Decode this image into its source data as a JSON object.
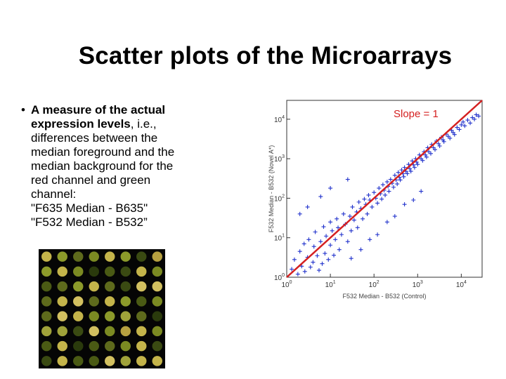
{
  "slide": {
    "title": "Scatter plots of the Microarrays",
    "bullet": {
      "marker": "•",
      "bold_lead": "A measure of the actual expression levels",
      "rest": ", i.e., differences between the median foreground and the median background for the red channel and green channel:",
      "line1": "\"F635 Median - B635\"",
      "line2": "\"F532 Median - B532”"
    }
  },
  "microarray_image": {
    "rows": 8,
    "cols": 8,
    "spot_colors": [
      "#3a4a12",
      "#5e6a1c",
      "#7b8a22",
      "#a0a23a",
      "#c4b44a",
      "#8c9a2a",
      "#4a5a14",
      "#2a3a0c",
      "#b6a040",
      "#d2c060"
    ]
  },
  "chart_data": {
    "type": "scatter",
    "title": "",
    "xlabel": "F532 Median - B532 (Control)",
    "ylabel": "F532 Median - B532 (Novel A*)",
    "xscale": "log",
    "yscale": "log",
    "xlim": [
      1,
      30000
    ],
    "ylim": [
      1,
      30000
    ],
    "x_ticks": [
      "10^0",
      "10^1",
      "10^2",
      "10^3",
      "10^4"
    ],
    "y_ticks": [
      "10^0",
      "10^1",
      "10^2",
      "10^3",
      "10^4"
    ],
    "marker": "+",
    "point_color": "#2233cc",
    "reference_line": {
      "label": "Slope = 1",
      "slope": 1,
      "color": "#d42020",
      "from": [
        1,
        1
      ],
      "to": [
        30000,
        30000
      ]
    },
    "annotation_color": "#d42020",
    "series": [
      {
        "points": [
          [
            1.3,
            1.6
          ],
          [
            1.5,
            2.8
          ],
          [
            1.8,
            1.2
          ],
          [
            2,
            4.5
          ],
          [
            2.2,
            1.9
          ],
          [
            2.5,
            7
          ],
          [
            2.6,
            1.4
          ],
          [
            3,
            3.2
          ],
          [
            3.2,
            9
          ],
          [
            3.5,
            1.8
          ],
          [
            4,
            2.4
          ],
          [
            4.2,
            6
          ],
          [
            4.5,
            14
          ],
          [
            5,
            3.5
          ],
          [
            5.5,
            1.5
          ],
          [
            6,
            8
          ],
          [
            6.5,
            2.2
          ],
          [
            7,
            19
          ],
          [
            7.5,
            4
          ],
          [
            8,
            11
          ],
          [
            9,
            2.8
          ],
          [
            10,
            6.5
          ],
          [
            10,
            25
          ],
          [
            11,
            15
          ],
          [
            12,
            3.6
          ],
          [
            13,
            9
          ],
          [
            14,
            30
          ],
          [
            15,
            18
          ],
          [
            16,
            5
          ],
          [
            18,
            12
          ],
          [
            20,
            40
          ],
          [
            22,
            22
          ],
          [
            25,
            8
          ],
          [
            28,
            35
          ],
          [
            30,
            15
          ],
          [
            32,
            60
          ],
          [
            35,
            28
          ],
          [
            40,
            45
          ],
          [
            42,
            18
          ],
          [
            45,
            80
          ],
          [
            50,
            55
          ],
          [
            55,
            30
          ],
          [
            60,
            95
          ],
          [
            65,
            70
          ],
          [
            70,
            40
          ],
          [
            75,
            120
          ],
          [
            80,
            90
          ],
          [
            90,
            60
          ],
          [
            100,
            140
          ],
          [
            110,
            100
          ],
          [
            120,
            75
          ],
          [
            130,
            180
          ],
          [
            140,
            130
          ],
          [
            150,
            95
          ],
          [
            160,
            220
          ],
          [
            170,
            160
          ],
          [
            180,
            120
          ],
          [
            200,
            260
          ],
          [
            210,
            200
          ],
          [
            220,
            150
          ],
          [
            240,
            300
          ],
          [
            260,
            240
          ],
          [
            280,
            190
          ],
          [
            300,
            380
          ],
          [
            320,
            290
          ],
          [
            340,
            230
          ],
          [
            360,
            450
          ],
          [
            380,
            340
          ],
          [
            400,
            290
          ],
          [
            430,
            520
          ],
          [
            460,
            420
          ],
          [
            480,
            350
          ],
          [
            500,
            600
          ],
          [
            540,
            480
          ],
          [
            580,
            420
          ],
          [
            620,
            720
          ],
          [
            660,
            560
          ],
          [
            700,
            480
          ],
          [
            750,
            880
          ],
          [
            800,
            700
          ],
          [
            850,
            600
          ],
          [
            900,
            1000
          ],
          [
            950,
            820
          ],
          [
            1000,
            720
          ],
          [
            1100,
            1250
          ],
          [
            1200,
            1000
          ],
          [
            1300,
            900
          ],
          [
            1400,
            1500
          ],
          [
            1500,
            1250
          ],
          [
            1600,
            1100
          ],
          [
            1700,
            1900
          ],
          [
            1800,
            1500
          ],
          [
            2000,
            1350
          ],
          [
            2100,
            2300
          ],
          [
            2300,
            1900
          ],
          [
            2500,
            1700
          ],
          [
            2700,
            2800
          ],
          [
            3000,
            2400
          ],
          [
            3200,
            2100
          ],
          [
            3500,
            3500
          ],
          [
            3800,
            3000
          ],
          [
            4000,
            2700
          ],
          [
            4500,
            4200
          ],
          [
            5000,
            3700
          ],
          [
            5500,
            3300
          ],
          [
            6000,
            5200
          ],
          [
            6500,
            4600
          ],
          [
            7000,
            4100
          ],
          [
            8000,
            6200
          ],
          [
            9000,
            5500
          ],
          [
            10000,
            7200
          ],
          [
            11000,
            8500
          ],
          [
            12000,
            6800
          ],
          [
            14000,
            9500
          ],
          [
            16000,
            8000
          ],
          [
            18000,
            11000
          ],
          [
            20000,
            10000
          ],
          [
            22000,
            13000
          ],
          [
            25000,
            12000
          ],
          [
            30,
            3
          ],
          [
            50,
            5
          ],
          [
            80,
            9
          ],
          [
            120,
            12
          ],
          [
            200,
            25
          ],
          [
            300,
            35
          ],
          [
            500,
            70
          ],
          [
            800,
            90
          ],
          [
            1200,
            150
          ],
          [
            3,
            60
          ],
          [
            6,
            110
          ],
          [
            10,
            180
          ],
          [
            25,
            300
          ],
          [
            2,
            40
          ]
        ]
      }
    ]
  }
}
